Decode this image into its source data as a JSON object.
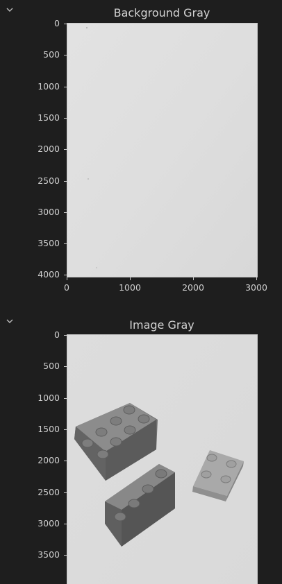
{
  "cell1": {
    "title": "Background Gray",
    "chart_data": {
      "type": "image",
      "title": "Background Gray",
      "yticks": [
        "0",
        "500",
        "1000",
        "1500",
        "2000",
        "2500",
        "3000",
        "3500",
        "4000"
      ],
      "xticks": [
        "0",
        "1000",
        "2000",
        "3000"
      ],
      "xlim": [
        0,
        3024
      ],
      "ylim": [
        4032,
        0
      ]
    }
  },
  "cell2": {
    "title": "Image Gray",
    "chart_data": {
      "type": "image",
      "title": "Image Gray",
      "yticks": [
        "0",
        "500",
        "1000",
        "1500",
        "2000",
        "2500",
        "3000",
        "3500"
      ],
      "xlim": [
        0,
        3024
      ],
      "ylim": [
        4032,
        0
      ]
    }
  },
  "icons": {
    "collapse": "chevron-down-icon"
  }
}
